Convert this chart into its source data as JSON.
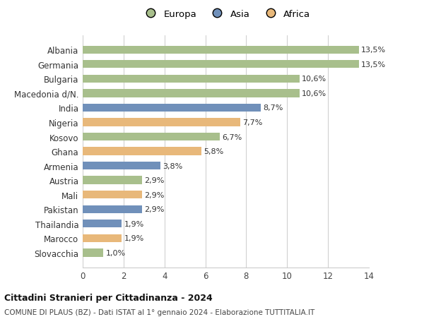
{
  "countries": [
    "Slovacchia",
    "Marocco",
    "Thailandia",
    "Pakistan",
    "Mali",
    "Austria",
    "Armenia",
    "Ghana",
    "Kosovo",
    "Nigeria",
    "India",
    "Macedonia d/N.",
    "Bulgaria",
    "Germania",
    "Albania"
  ],
  "values": [
    1.0,
    1.9,
    1.9,
    2.9,
    2.9,
    2.9,
    3.8,
    5.8,
    6.7,
    7.7,
    8.7,
    10.6,
    10.6,
    13.5,
    13.5
  ],
  "labels": [
    "1,0%",
    "1,9%",
    "1,9%",
    "2,9%",
    "2,9%",
    "2,9%",
    "3,8%",
    "5,8%",
    "6,7%",
    "7,7%",
    "8,7%",
    "10,6%",
    "10,6%",
    "13,5%",
    "13,5%"
  ],
  "continents": [
    "Europa",
    "Africa",
    "Asia",
    "Asia",
    "Africa",
    "Europa",
    "Asia",
    "Africa",
    "Europa",
    "Africa",
    "Asia",
    "Europa",
    "Europa",
    "Europa",
    "Europa"
  ],
  "colors": {
    "Europa": "#a8bf8c",
    "Asia": "#7090ba",
    "Africa": "#e8b87a"
  },
  "title": "Cittadini Stranieri per Cittadinanza - 2024",
  "subtitle": "COMUNE DI PLAUS (BZ) - Dati ISTAT al 1° gennaio 2024 - Elaborazione TUTTITALIA.IT",
  "xlim": [
    0,
    14
  ],
  "xticks": [
    0,
    2,
    4,
    6,
    8,
    10,
    12,
    14
  ],
  "background_color": "#ffffff",
  "grid_color": "#cccccc"
}
